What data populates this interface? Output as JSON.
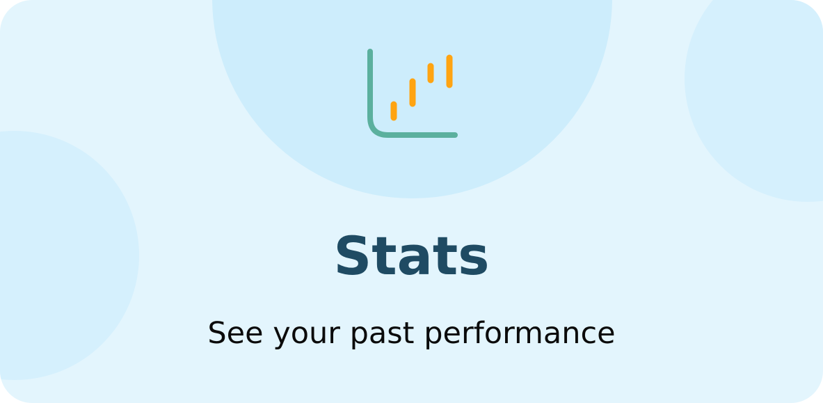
{
  "card": {
    "title": "Stats",
    "subtitle": "See your past performance",
    "icon": "chart-bars-icon"
  },
  "colors": {
    "background": "#e3f5fd",
    "circle_main": "#cdedfc",
    "circle_side": "#d5f0fd",
    "title": "#1f4b63",
    "subtitle": "#0b0b0b",
    "axis": "#5bb09e",
    "bars": "#ffa412"
  }
}
